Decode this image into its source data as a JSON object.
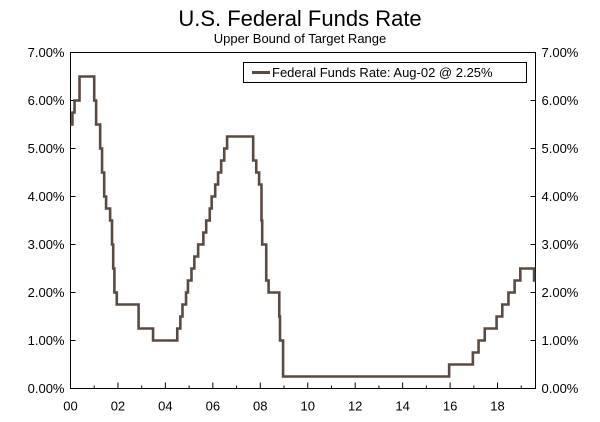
{
  "chart_data": {
    "type": "line",
    "title": "U.S. Federal Funds Rate",
    "subtitle": "Upper Bound of Target Range",
    "xlabel": "",
    "ylabel": "",
    "xlim": [
      2000,
      2019.6
    ],
    "ylim": [
      0,
      7
    ],
    "x_ticks": [
      {
        "value": 2000,
        "label": "00"
      },
      {
        "value": 2002,
        "label": "02"
      },
      {
        "value": 2004,
        "label": "04"
      },
      {
        "value": 2006,
        "label": "06"
      },
      {
        "value": 2008,
        "label": "08"
      },
      {
        "value": 2010,
        "label": "10"
      },
      {
        "value": 2012,
        "label": "12"
      },
      {
        "value": 2014,
        "label": "14"
      },
      {
        "value": 2016,
        "label": "16"
      },
      {
        "value": 2018,
        "label": "18"
      }
    ],
    "y_ticks": [
      {
        "value": 0,
        "label": "0.00%"
      },
      {
        "value": 1,
        "label": "1.00%"
      },
      {
        "value": 2,
        "label": "2.00%"
      },
      {
        "value": 3,
        "label": "3.00%"
      },
      {
        "value": 4,
        "label": "4.00%"
      },
      {
        "value": 5,
        "label": "5.00%"
      },
      {
        "value": 6,
        "label": "6.00%"
      },
      {
        "value": 7,
        "label": "7.00%"
      }
    ],
    "grid": false,
    "legend_position": "top-right",
    "series_color": "#5a4a42",
    "series": [
      {
        "name": "Federal Funds Rate: Aug-02 @ 2.25%",
        "points": [
          [
            2000.0,
            5.5
          ],
          [
            2000.08,
            5.75
          ],
          [
            2000.17,
            6.0
          ],
          [
            2000.38,
            6.5
          ],
          [
            2001.0,
            6.0
          ],
          [
            2001.08,
            5.5
          ],
          [
            2001.25,
            5.0
          ],
          [
            2001.33,
            4.5
          ],
          [
            2001.42,
            4.0
          ],
          [
            2001.5,
            3.75
          ],
          [
            2001.67,
            3.5
          ],
          [
            2001.75,
            3.0
          ],
          [
            2001.8,
            2.5
          ],
          [
            2001.85,
            2.0
          ],
          [
            2001.95,
            1.75
          ],
          [
            2002.87,
            1.25
          ],
          [
            2003.48,
            1.0
          ],
          [
            2004.5,
            1.25
          ],
          [
            2004.63,
            1.5
          ],
          [
            2004.72,
            1.75
          ],
          [
            2004.87,
            2.0
          ],
          [
            2004.95,
            2.25
          ],
          [
            2005.1,
            2.5
          ],
          [
            2005.22,
            2.75
          ],
          [
            2005.38,
            3.0
          ],
          [
            2005.6,
            3.25
          ],
          [
            2005.72,
            3.5
          ],
          [
            2005.87,
            3.75
          ],
          [
            2005.95,
            4.0
          ],
          [
            2006.1,
            4.25
          ],
          [
            2006.22,
            4.5
          ],
          [
            2006.35,
            4.75
          ],
          [
            2006.48,
            5.0
          ],
          [
            2006.6,
            5.25
          ],
          [
            2007.7,
            4.75
          ],
          [
            2007.83,
            4.5
          ],
          [
            2007.95,
            4.25
          ],
          [
            2008.05,
            3.5
          ],
          [
            2008.08,
            3.0
          ],
          [
            2008.25,
            2.25
          ],
          [
            2008.35,
            2.0
          ],
          [
            2008.8,
            1.5
          ],
          [
            2008.83,
            1.0
          ],
          [
            2008.96,
            0.25
          ],
          [
            2015.96,
            0.5
          ],
          [
            2016.96,
            0.75
          ],
          [
            2017.2,
            1.0
          ],
          [
            2017.46,
            1.25
          ],
          [
            2017.96,
            1.5
          ],
          [
            2018.2,
            1.75
          ],
          [
            2018.46,
            2.0
          ],
          [
            2018.72,
            2.25
          ],
          [
            2018.96,
            2.5
          ],
          [
            2019.54,
            2.25
          ],
          [
            2019.6,
            2.25
          ]
        ]
      }
    ]
  }
}
